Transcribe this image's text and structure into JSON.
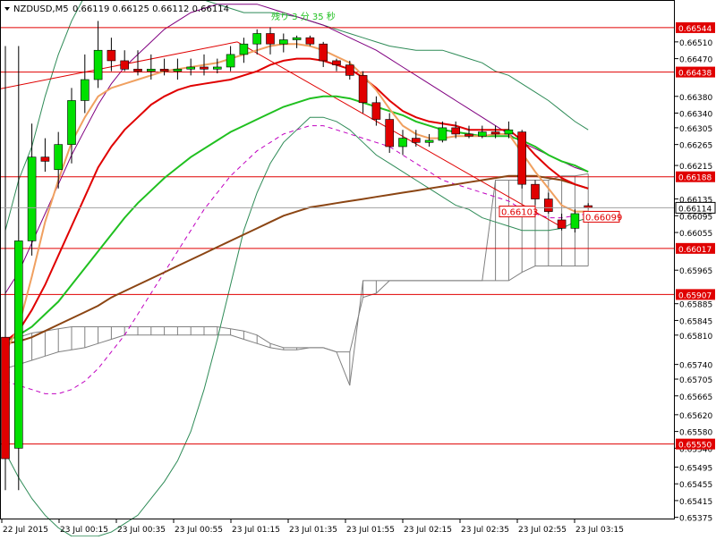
{
  "header": {
    "symbol": "NZDUSD,M5",
    "ohlc": "0.66119 0.66125 0.66112 0.66114",
    "countdown": "残り 3 分 35 秒"
  },
  "colors": {
    "background": "#ffffff",
    "grid": "#c0c0c0",
    "axis": "#000000",
    "bull_candle": "#00e000",
    "bear_candle": "#e00000",
    "ma_fast": "#f0a060",
    "ma_mid": "#e00000",
    "ma_slow": "#20c020",
    "ma_long": "#8b4513",
    "bollinger_outer": "#2e8b57",
    "bollinger_inner": "#800080",
    "bollinger_inner2": "#c000c0",
    "cloud": "#808080",
    "hline": "#e00000",
    "trendline": "#e00000",
    "price_tag": "#e00000"
  },
  "chart_data": {
    "type": "candlestick",
    "ylim": [
      0.6537,
      0.6661
    ],
    "y_ticks": [
      "0.66510",
      "0.66470",
      "0.66380",
      "0.66340",
      "0.66305",
      "0.66265",
      "0.66215",
      "0.66135",
      "0.66095",
      "0.66055",
      "0.65965",
      "0.65885",
      "0.65845",
      "0.65810",
      "0.65740",
      "0.65705",
      "0.65665",
      "0.65620",
      "0.65580",
      "0.65540",
      "0.65495",
      "0.65455",
      "0.65415",
      "0.65375"
    ],
    "x_ticks": [
      "22 Jul 2015",
      "23 Jul 00:15",
      "23 Jul 00:35",
      "23 Jul 00:55",
      "23 Jul 01:15",
      "23 Jul 01:35",
      "23 Jul 01:55",
      "23 Jul 02:15",
      "23 Jul 02:35",
      "23 Jul 02:55",
      "23 Jul 03:15"
    ],
    "candles": [
      {
        "o": 0.65805,
        "h": 0.665,
        "l": 0.6544,
        "c": 0.65515
      },
      {
        "o": 0.6554,
        "h": 0.665,
        "l": 0.6544,
        "c": 0.66035
      },
      {
        "o": 0.66035,
        "h": 0.66315,
        "l": 0.66,
        "c": 0.66235
      },
      {
        "o": 0.66235,
        "h": 0.6628,
        "l": 0.662,
        "c": 0.66225
      },
      {
        "o": 0.66205,
        "h": 0.66295,
        "l": 0.6616,
        "c": 0.66265
      },
      {
        "o": 0.66265,
        "h": 0.664,
        "l": 0.6622,
        "c": 0.6637
      },
      {
        "o": 0.6637,
        "h": 0.6648,
        "l": 0.6634,
        "c": 0.6642
      },
      {
        "o": 0.6642,
        "h": 0.6656,
        "l": 0.664,
        "c": 0.6649
      },
      {
        "o": 0.6649,
        "h": 0.6652,
        "l": 0.6644,
        "c": 0.66465
      },
      {
        "o": 0.66465,
        "h": 0.6649,
        "l": 0.6644,
        "c": 0.66445
      },
      {
        "o": 0.66445,
        "h": 0.6649,
        "l": 0.6643,
        "c": 0.6644
      },
      {
        "o": 0.6644,
        "h": 0.6648,
        "l": 0.6642,
        "c": 0.66445
      },
      {
        "o": 0.66445,
        "h": 0.6647,
        "l": 0.6643,
        "c": 0.6644
      },
      {
        "o": 0.6644,
        "h": 0.6647,
        "l": 0.6642,
        "c": 0.66445
      },
      {
        "o": 0.66445,
        "h": 0.6647,
        "l": 0.6643,
        "c": 0.6645
      },
      {
        "o": 0.6645,
        "h": 0.6648,
        "l": 0.6643,
        "c": 0.66445
      },
      {
        "o": 0.66445,
        "h": 0.6647,
        "l": 0.66435,
        "c": 0.6645
      },
      {
        "o": 0.6645,
        "h": 0.665,
        "l": 0.6644,
        "c": 0.6648
      },
      {
        "o": 0.6648,
        "h": 0.6652,
        "l": 0.6646,
        "c": 0.66505
      },
      {
        "o": 0.66505,
        "h": 0.6654,
        "l": 0.6648,
        "c": 0.6653
      },
      {
        "o": 0.6653,
        "h": 0.66545,
        "l": 0.6648,
        "c": 0.66505
      },
      {
        "o": 0.66505,
        "h": 0.6653,
        "l": 0.66485,
        "c": 0.66515
      },
      {
        "o": 0.66515,
        "h": 0.66525,
        "l": 0.66495,
        "c": 0.6652
      },
      {
        "o": 0.6652,
        "h": 0.66525,
        "l": 0.665,
        "c": 0.66505
      },
      {
        "o": 0.66505,
        "h": 0.6651,
        "l": 0.6645,
        "c": 0.66465
      },
      {
        "o": 0.66465,
        "h": 0.6647,
        "l": 0.6644,
        "c": 0.66455
      },
      {
        "o": 0.66455,
        "h": 0.66465,
        "l": 0.6642,
        "c": 0.6643
      },
      {
        "o": 0.6643,
        "h": 0.6644,
        "l": 0.6634,
        "c": 0.66365
      },
      {
        "o": 0.66365,
        "h": 0.6638,
        "l": 0.6631,
        "c": 0.66325
      },
      {
        "o": 0.66325,
        "h": 0.6634,
        "l": 0.66245,
        "c": 0.6626
      },
      {
        "o": 0.6626,
        "h": 0.663,
        "l": 0.6624,
        "c": 0.6628
      },
      {
        "o": 0.6628,
        "h": 0.663,
        "l": 0.6626,
        "c": 0.6627
      },
      {
        "o": 0.6627,
        "h": 0.6629,
        "l": 0.6626,
        "c": 0.66275
      },
      {
        "o": 0.66275,
        "h": 0.6632,
        "l": 0.6627,
        "c": 0.66305
      },
      {
        "o": 0.66305,
        "h": 0.6632,
        "l": 0.6628,
        "c": 0.6629
      },
      {
        "o": 0.6629,
        "h": 0.6631,
        "l": 0.6628,
        "c": 0.66285
      },
      {
        "o": 0.66285,
        "h": 0.6631,
        "l": 0.6628,
        "c": 0.66295
      },
      {
        "o": 0.66295,
        "h": 0.6631,
        "l": 0.6628,
        "c": 0.6629
      },
      {
        "o": 0.6629,
        "h": 0.6632,
        "l": 0.6628,
        "c": 0.663
      },
      {
        "o": 0.66295,
        "h": 0.663,
        "l": 0.6616,
        "c": 0.6617
      },
      {
        "o": 0.6617,
        "h": 0.6618,
        "l": 0.6612,
        "c": 0.66135
      },
      {
        "o": 0.66135,
        "h": 0.6615,
        "l": 0.661,
        "c": 0.66105
      },
      {
        "o": 0.66085,
        "h": 0.661,
        "l": 0.6606,
        "c": 0.66065
      },
      {
        "o": 0.66065,
        "h": 0.6611,
        "l": 0.66055,
        "c": 0.661
      },
      {
        "o": 0.66119,
        "h": 0.66125,
        "l": 0.66112,
        "c": 0.66114
      }
    ],
    "ma_fast": [
      0.6577,
      0.6583,
      0.6595,
      0.6608,
      0.6618,
      0.6627,
      0.6633,
      0.6638,
      0.664,
      0.6641,
      0.6642,
      0.6643,
      0.6644,
      0.66445,
      0.6645,
      0.66455,
      0.6646,
      0.6647,
      0.6648,
      0.6649,
      0.665,
      0.66505,
      0.66505,
      0.665,
      0.6649,
      0.66475,
      0.6646,
      0.6643,
      0.66395,
      0.6635,
      0.6631,
      0.6629,
      0.6628,
      0.6628,
      0.66285,
      0.66285,
      0.66285,
      0.6629,
      0.6629,
      0.66245,
      0.662,
      0.6616,
      0.6612,
      0.66105,
      0.66105
    ],
    "ma_mid": [
      0.65795,
      0.6582,
      0.6587,
      0.6593,
      0.66,
      0.6607,
      0.6614,
      0.6621,
      0.6626,
      0.663,
      0.6633,
      0.6636,
      0.6638,
      0.66395,
      0.66405,
      0.6641,
      0.66415,
      0.6642,
      0.6643,
      0.6644,
      0.66455,
      0.66465,
      0.6647,
      0.6647,
      0.66465,
      0.66455,
      0.66445,
      0.66425,
      0.664,
      0.6637,
      0.66345,
      0.6633,
      0.6632,
      0.66315,
      0.6631,
      0.663,
      0.663,
      0.663,
      0.663,
      0.66275,
      0.6624,
      0.6621,
      0.66185,
      0.6617,
      0.6616
    ],
    "ma_slow": [
      0.65795,
      0.6581,
      0.6583,
      0.6586,
      0.6589,
      0.6593,
      0.6597,
      0.6601,
      0.6605,
      0.6609,
      0.66125,
      0.66155,
      0.66185,
      0.6621,
      0.66235,
      0.66255,
      0.66275,
      0.66295,
      0.6631,
      0.66325,
      0.6634,
      0.66355,
      0.66365,
      0.66375,
      0.6638,
      0.6638,
      0.66375,
      0.66365,
      0.66355,
      0.66345,
      0.66335,
      0.6632,
      0.6631,
      0.663,
      0.66295,
      0.6629,
      0.66285,
      0.66285,
      0.66285,
      0.66275,
      0.6626,
      0.6624,
      0.66225,
      0.66215,
      0.662
    ],
    "ma_long": [
      0.6579,
      0.65795,
      0.65805,
      0.6582,
      0.65835,
      0.6585,
      0.65865,
      0.6588,
      0.659,
      0.65915,
      0.6593,
      0.65945,
      0.6596,
      0.65975,
      0.6599,
      0.66005,
      0.6602,
      0.66035,
      0.6605,
      0.66065,
      0.6608,
      0.66095,
      0.66105,
      0.66115,
      0.6612,
      0.66125,
      0.6613,
      0.66135,
      0.6614,
      0.66145,
      0.6615,
      0.66155,
      0.6616,
      0.66165,
      0.6617,
      0.66175,
      0.6618,
      0.66185,
      0.6619,
      0.6619,
      0.6619,
      0.66185,
      0.6618,
      0.6617,
      0.6616
    ],
    "bb_upper": [
      0.6606,
      0.6618,
      0.6626,
      0.6638,
      0.6648,
      0.6656,
      0.6662,
      0.6666,
      0.6668,
      0.667,
      0.667,
      0.6668,
      0.6666,
      0.6664,
      0.6662,
      0.6661,
      0.666,
      0.6659,
      0.6658,
      0.6658,
      0.6658,
      0.66575,
      0.6657,
      0.6656,
      0.6655,
      0.6654,
      0.6653,
      0.6652,
      0.6651,
      0.665,
      0.66495,
      0.6649,
      0.6649,
      0.6649,
      0.6648,
      0.6647,
      0.6646,
      0.6644,
      0.6643,
      0.6641,
      0.6639,
      0.6637,
      0.66345,
      0.6632,
      0.663
    ],
    "bb_lower": [
      0.6553,
      0.6547,
      0.6542,
      0.6538,
      0.6535,
      0.6533,
      0.6533,
      0.6533,
      0.6534,
      0.6536,
      0.6538,
      0.6542,
      0.6546,
      0.6551,
      0.6558,
      0.6568,
      0.658,
      0.6593,
      0.6606,
      0.6615,
      0.6622,
      0.6627,
      0.663,
      0.6633,
      0.6633,
      0.6632,
      0.663,
      0.6627,
      0.6624,
      0.6622,
      0.662,
      0.6618,
      0.6616,
      0.6614,
      0.6612,
      0.6611,
      0.6609,
      0.6608,
      0.6607,
      0.6606,
      0.6606,
      0.6606,
      0.66065,
      0.6608,
      0.6609
    ],
    "bb_mid_upper": [
      0.6591,
      0.6596,
      0.6603,
      0.661,
      0.6617,
      0.6624,
      0.663,
      0.6636,
      0.6641,
      0.6645,
      0.6648,
      0.6651,
      0.6654,
      0.6656,
      0.6658,
      0.6659,
      0.666,
      0.666,
      0.666,
      0.666,
      0.6659,
      0.6658,
      0.6657,
      0.6656,
      0.6655,
      0.66535,
      0.6652,
      0.66505,
      0.6649,
      0.6647,
      0.6645,
      0.6643,
      0.6641,
      0.6639,
      0.6637,
      0.6635,
      0.6633,
      0.6631,
      0.6629,
      0.6627,
      0.66255,
      0.6624,
      0.66225,
      0.6621,
      0.662
    ],
    "bb_mid_lower": [
      0.657,
      0.6569,
      0.6568,
      0.6567,
      0.6567,
      0.6568,
      0.657,
      0.6573,
      0.6577,
      0.6581,
      0.6586,
      0.6591,
      0.6596,
      0.6601,
      0.6606,
      0.6611,
      0.6615,
      0.6619,
      0.6622,
      0.6625,
      0.6627,
      0.6629,
      0.663,
      0.6631,
      0.6631,
      0.663,
      0.6629,
      0.6628,
      0.6627,
      0.6626,
      0.6624,
      0.6622,
      0.662,
      0.6618,
      0.6617,
      0.6616,
      0.6615,
      0.6614,
      0.6613,
      0.6611,
      0.661,
      0.6609,
      0.6609,
      0.66095,
      0.661
    ],
    "cloud_top": [
      0.658,
      0.65805,
      0.65815,
      0.6582,
      0.65825,
      0.6583,
      0.6583,
      0.6583,
      0.6583,
      0.6583,
      0.6583,
      0.6583,
      0.6583,
      0.6583,
      0.6583,
      0.6583,
      0.6583,
      0.65825,
      0.6582,
      0.6581,
      0.6579,
      0.6578,
      0.6578,
      0.6578,
      0.6578,
      0.6577,
      0.6577,
      0.659,
      0.6591,
      0.6594,
      0.6594,
      0.6594,
      0.6594,
      0.6594,
      0.6594,
      0.6594,
      0.6594,
      0.6618,
      0.6618,
      0.6618,
      0.6618,
      0.6618,
      0.6619,
      0.6619,
      0.66195
    ],
    "cloud_bottom": [
      0.6573,
      0.6574,
      0.6575,
      0.6576,
      0.6577,
      0.65775,
      0.6578,
      0.6579,
      0.658,
      0.6581,
      0.6581,
      0.6581,
      0.6581,
      0.6581,
      0.6581,
      0.6581,
      0.6581,
      0.6581,
      0.658,
      0.6579,
      0.6578,
      0.65775,
      0.65775,
      0.6578,
      0.6578,
      0.6577,
      0.6569,
      0.6594,
      0.6594,
      0.6594,
      0.6594,
      0.6594,
      0.6594,
      0.6594,
      0.6594,
      0.6594,
      0.6594,
      0.6594,
      0.6594,
      0.6596,
      0.65975,
      0.65975,
      0.65975,
      0.65975,
      0.65975
    ],
    "hlines": [
      {
        "value": 0.66544,
        "label": "0.66544"
      },
      {
        "value": 0.66438,
        "label": "0.66438"
      },
      {
        "value": 0.66188,
        "label": "0.66188"
      },
      {
        "value": 0.66017,
        "label": "0.66017"
      },
      {
        "value": 0.65907,
        "label": "0.65907"
      },
      {
        "value": 0.6555,
        "label": "0.65550"
      }
    ],
    "current_price": {
      "value": 0.66114,
      "label": "0.66114"
    },
    "price_tags": [
      {
        "label": "0.66103",
        "value": 0.66103
      },
      {
        "label": "0.66099",
        "value": 0.66099
      }
    ]
  }
}
